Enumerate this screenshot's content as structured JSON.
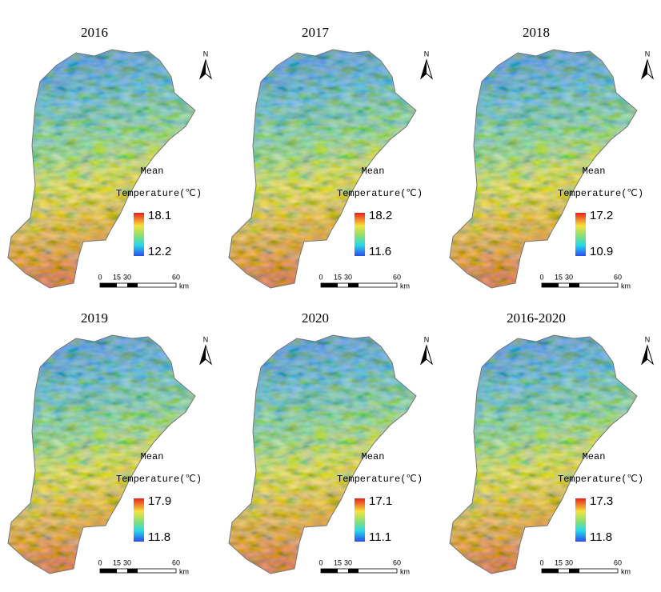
{
  "panels": [
    {
      "title": "2016",
      "north": "N",
      "legend_title": [
        "Mean",
        "Temperature(℃)"
      ],
      "max": "18.1",
      "min": "12.2",
      "scale": [
        "0",
        "15",
        "30",
        "60"
      ],
      "scale_unit": "km"
    },
    {
      "title": "2017",
      "north": "N",
      "legend_title": [
        "Mean",
        "Temperature(℃)"
      ],
      "max": "18.2",
      "min": "11.6",
      "scale": [
        "0",
        "15",
        "30",
        "60"
      ],
      "scale_unit": "km"
    },
    {
      "title": "2018",
      "north": "N",
      "legend_title": [
        "Mean",
        "Temperature(℃)"
      ],
      "max": "17.2",
      "min": "10.9",
      "scale": [
        "0",
        "15",
        "30",
        "60"
      ],
      "scale_unit": "km"
    },
    {
      "title": "2019",
      "north": "N",
      "legend_title": [
        "Mean",
        "Temperature(℃)"
      ],
      "max": "17.9",
      "min": "11.8",
      "scale": [
        "0",
        "15",
        "30",
        "60"
      ],
      "scale_unit": "km"
    },
    {
      "title": "2020",
      "north": "N",
      "legend_title": [
        "Mean",
        "Temperature(℃)"
      ],
      "max": "17.1",
      "min": "11.1",
      "scale": [
        "0",
        "15",
        "30",
        "60"
      ],
      "scale_unit": "km"
    },
    {
      "title": "2016-2020",
      "north": "N",
      "legend_title": [
        "Mean",
        "Temperature(℃)"
      ],
      "max": "17.3",
      "min": "11.8",
      "scale": [
        "0",
        "15",
        "30",
        "60"
      ],
      "scale_unit": "km"
    }
  ]
}
